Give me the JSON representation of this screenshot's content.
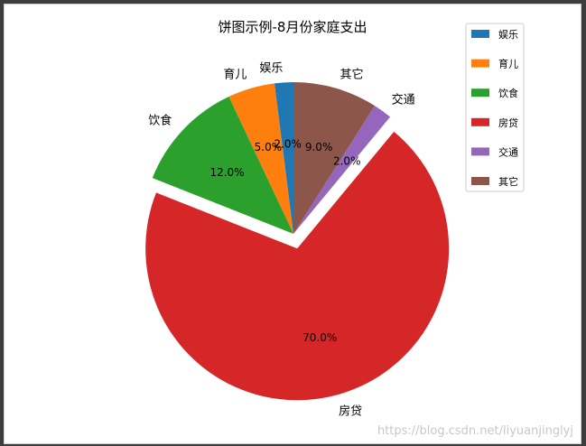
{
  "chart_data": {
    "type": "pie",
    "title": "饼图示例-8月份家庭支出",
    "categories": [
      "娱乐",
      "育儿",
      "饮食",
      "房贷",
      "交通",
      "其它"
    ],
    "values": [
      2,
      5,
      12,
      70,
      2,
      9
    ],
    "value_labels": [
      "2.0%",
      "5.0%",
      "12.0%",
      "70.0%",
      "2.0%",
      "9.0%"
    ],
    "colors": [
      "#1f77b4",
      "#ff7f0e",
      "#2ca02c",
      "#d62728",
      "#9467bd",
      "#8c564b"
    ],
    "explode": [
      0,
      0,
      0,
      0.1,
      0,
      0
    ],
    "start_angle_deg": 90,
    "direction": "counterclockwise",
    "legend": {
      "placement": "top-right",
      "entries": [
        "娱乐",
        "育儿",
        "饮食",
        "房贷",
        "交通",
        "其它"
      ]
    }
  },
  "watermark": "https://blog.csdn.net/liyuanjinglyj"
}
